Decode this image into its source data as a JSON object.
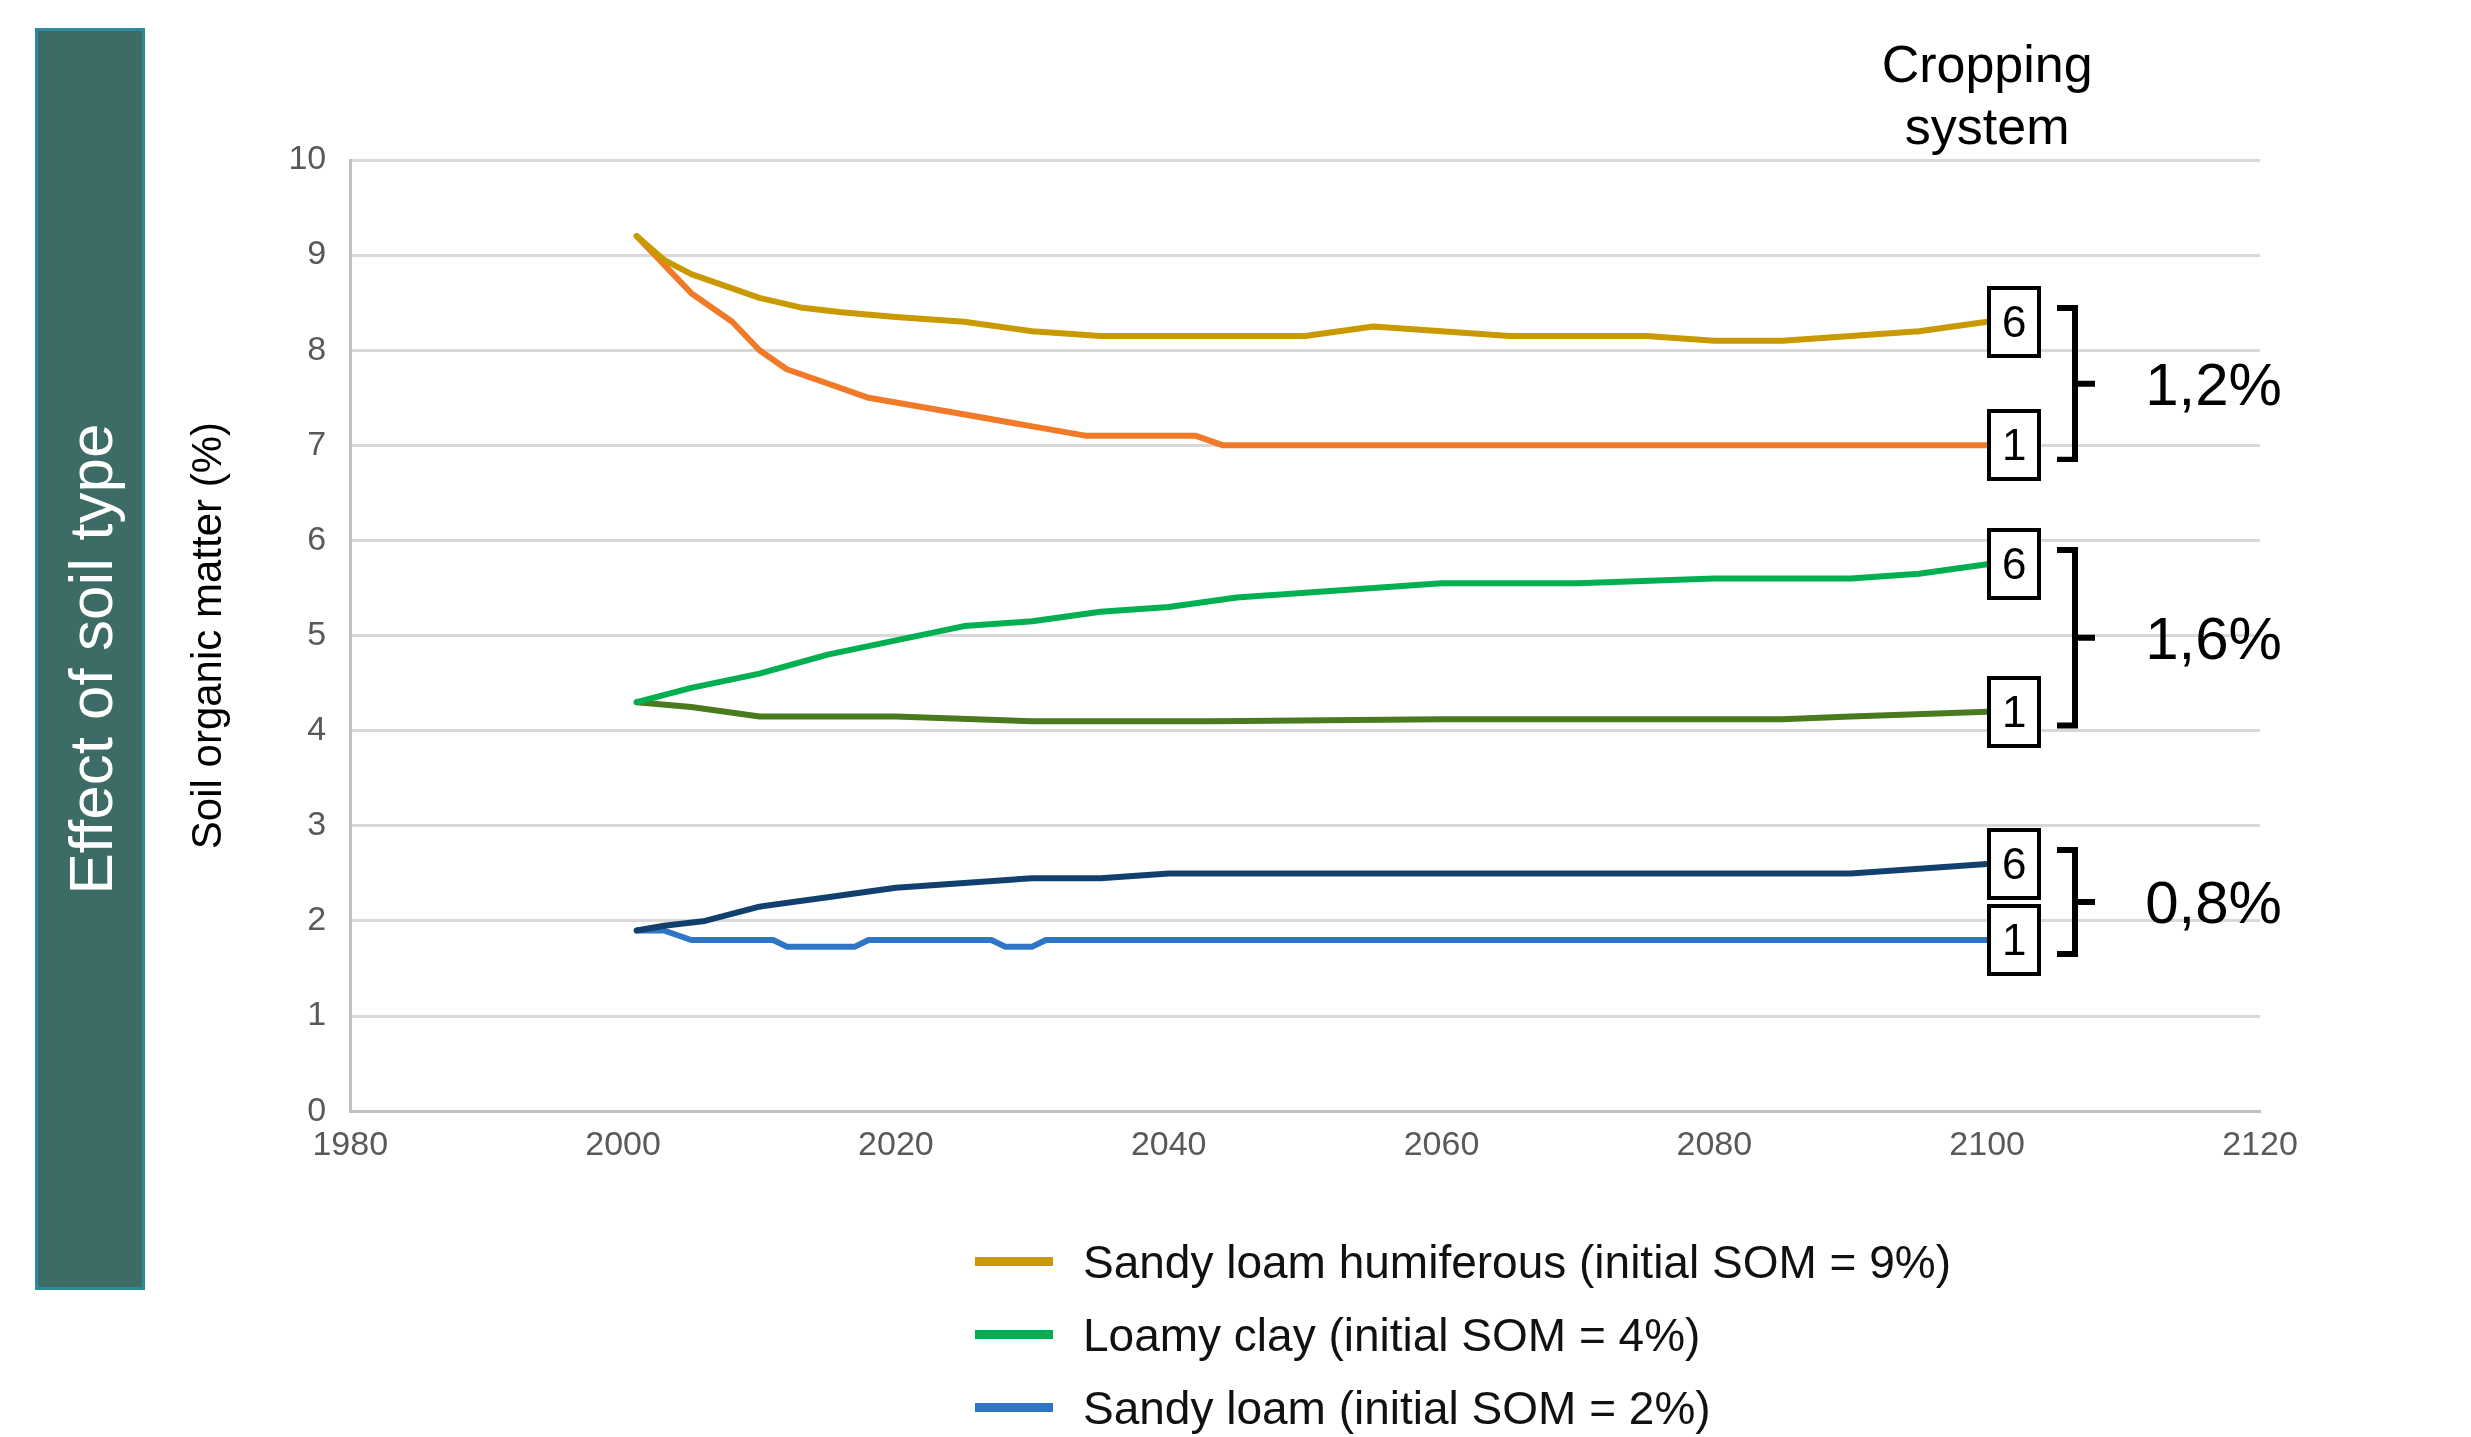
{
  "chart_data": {
    "type": "line",
    "title": "Effect of soil type",
    "ylabel": "Soil organic matter (%)",
    "xlim": [
      1980,
      2120
    ],
    "xticks": [
      1980,
      2000,
      2020,
      2040,
      2060,
      2080,
      2100,
      2120
    ],
    "ylim": [
      0,
      10
    ],
    "yticks": [
      0,
      1,
      2,
      3,
      4,
      5,
      6,
      7,
      8,
      9,
      10
    ],
    "grid": "y",
    "legend": "bottom",
    "marker": "none",
    "line_style": "solid",
    "series": [
      {
        "name": "Sandy loam humiferous (initial SOM = 9%)",
        "color": "#c89a00",
        "x": [
          2001,
          2003,
          2005,
          2007,
          2010,
          2013,
          2016,
          2020,
          2025,
          2030,
          2035,
          2040,
          2045,
          2050,
          2055,
          2060,
          2065,
          2070,
          2075,
          2080,
          2085,
          2090,
          2095,
          2100
        ],
        "values": [
          9.2,
          8.95,
          8.8,
          8.7,
          8.55,
          8.45,
          8.4,
          8.35,
          8.3,
          8.2,
          8.15,
          8.15,
          8.15,
          8.15,
          8.25,
          8.2,
          8.15,
          8.15,
          8.15,
          8.1,
          8.1,
          8.15,
          8.2,
          8.3
        ]
      },
      {
        "color": "#f07a28",
        "x": [
          2001,
          2003,
          2005,
          2008,
          2010,
          2012,
          2015,
          2018,
          2022,
          2026,
          2030,
          2034,
          2042,
          2044,
          2100
        ],
        "values": [
          9.2,
          8.9,
          8.6,
          8.3,
          8.0,
          7.8,
          7.65,
          7.5,
          7.4,
          7.3,
          7.2,
          7.1,
          7.1,
          7.0,
          7.0
        ]
      },
      {
        "name": "Loamy clay (initial SOM = 4%)",
        "color": "#00b050",
        "x": [
          2001,
          2005,
          2010,
          2015,
          2020,
          2025,
          2030,
          2035,
          2040,
          2045,
          2050,
          2055,
          2060,
          2070,
          2080,
          2090,
          2095,
          2100
        ],
        "values": [
          4.3,
          4.45,
          4.6,
          4.8,
          4.95,
          5.1,
          5.15,
          5.25,
          5.3,
          5.4,
          5.45,
          5.5,
          5.55,
          5.55,
          5.6,
          5.6,
          5.65,
          5.75
        ]
      },
      {
        "color": "#4a7a1e",
        "x": [
          2001,
          2005,
          2010,
          2020,
          2030,
          2043,
          2060,
          2085,
          2090,
          2100
        ],
        "values": [
          4.3,
          4.25,
          4.15,
          4.15,
          4.1,
          4.1,
          4.12,
          4.12,
          4.15,
          4.2
        ]
      },
      {
        "color": "#12406e",
        "x": [
          2001,
          2003,
          2006,
          2010,
          2015,
          2020,
          2025,
          2030,
          2035,
          2040,
          2050,
          2060,
          2070,
          2080,
          2090,
          2100
        ],
        "values": [
          1.9,
          1.95,
          2.0,
          2.15,
          2.25,
          2.35,
          2.4,
          2.45,
          2.45,
          2.5,
          2.5,
          2.5,
          2.5,
          2.5,
          2.5,
          2.6
        ]
      },
      {
        "name": "Sandy loam (initial SOM = 2%)",
        "color": "#2e75c6",
        "x": [
          2001,
          2003,
          2005,
          2011,
          2012,
          2017,
          2018,
          2027,
          2028,
          2030,
          2031,
          2100
        ],
        "values": [
          1.9,
          1.9,
          1.8,
          1.8,
          1.73,
          1.73,
          1.8,
          1.8,
          1.73,
          1.73,
          1.8,
          1.8
        ]
      }
    ],
    "annotations": [
      "Cropping system",
      "6",
      "1",
      "6",
      "1",
      "6",
      "1",
      "1,2%",
      "1,6%",
      "0,8%"
    ]
  }
}
